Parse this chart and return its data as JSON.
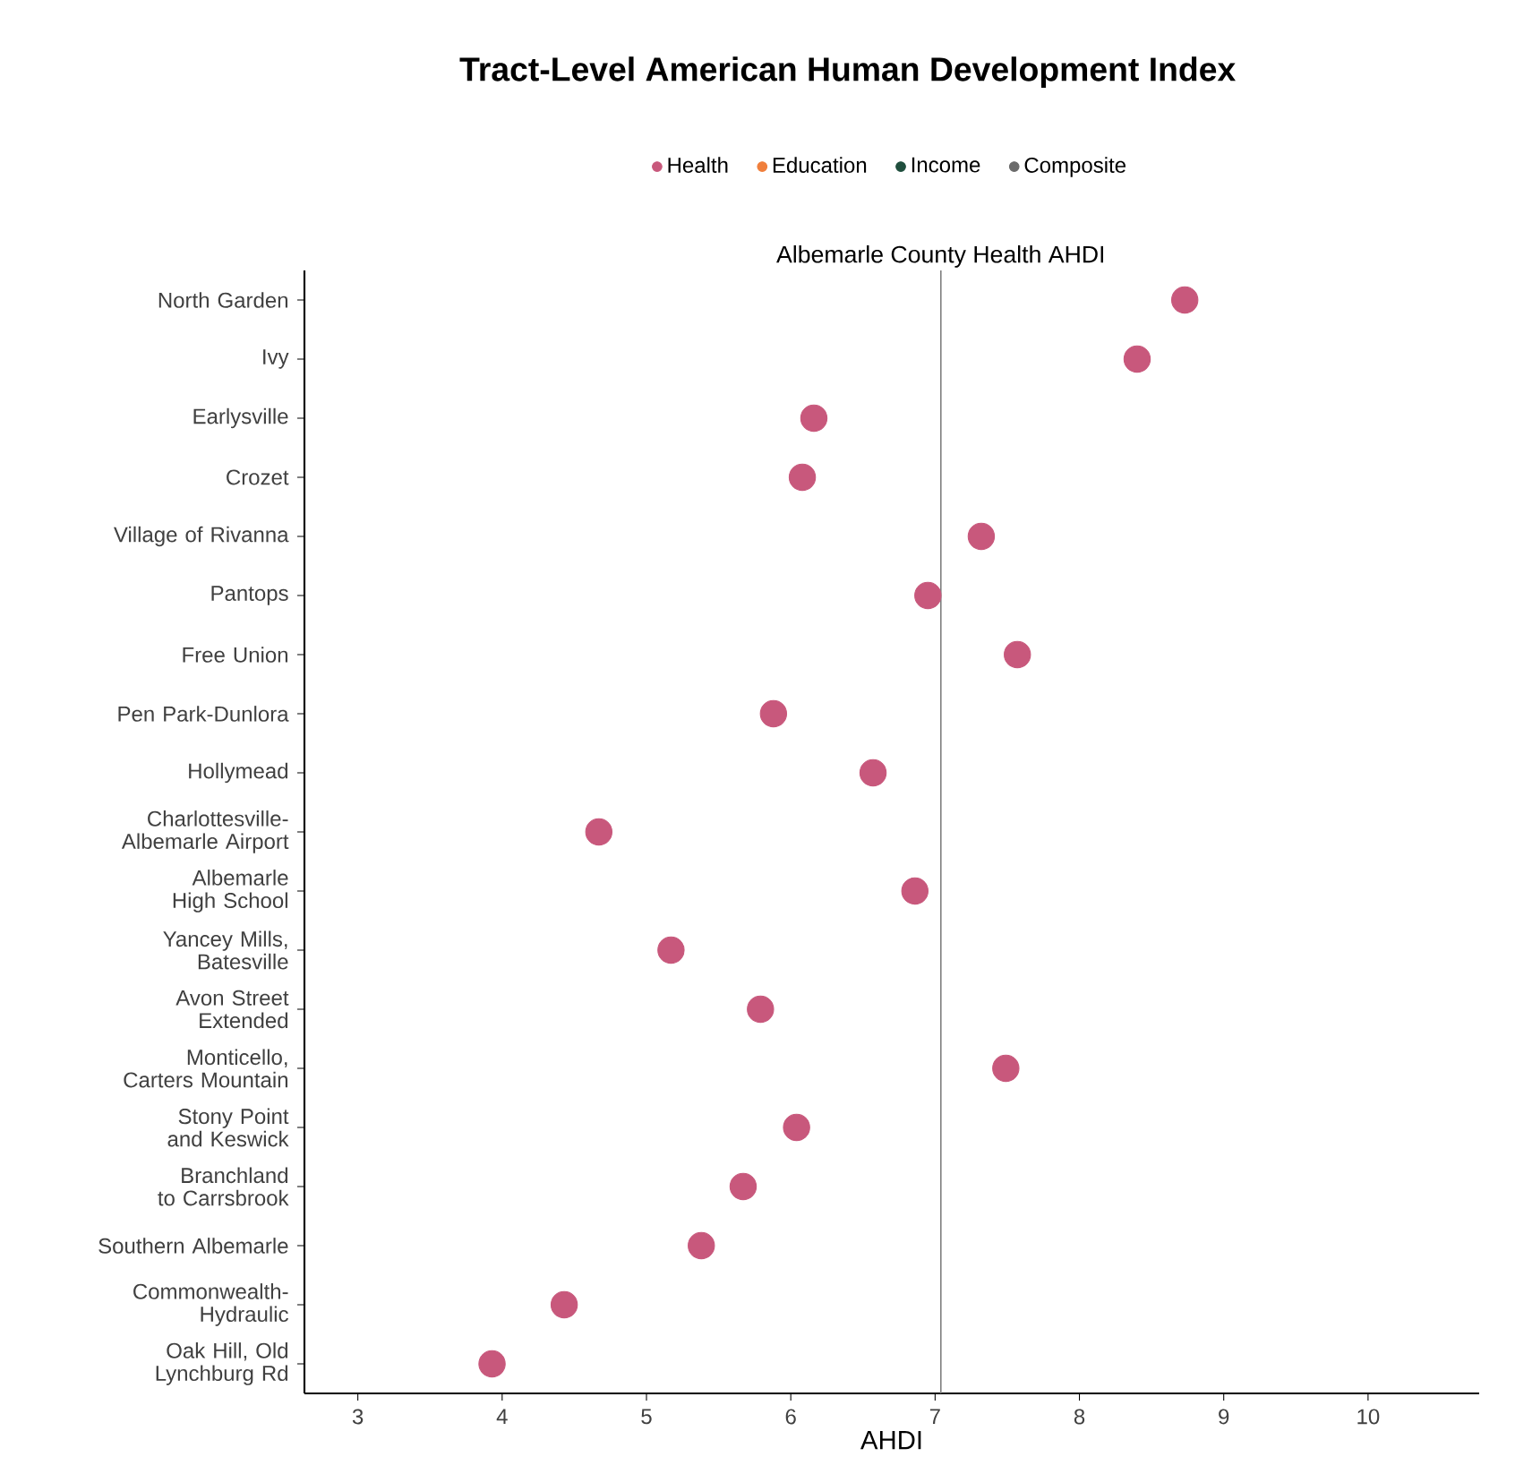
{
  "chart_data": {
    "type": "scatter",
    "title": "Tract-Level American Human Development Index",
    "xlabel": "AHDI",
    "categories": [
      "North Garden",
      "Ivy",
      "Earlysville",
      "Crozet",
      "Village of Rivanna",
      "Pantops",
      "Free Union",
      "Pen Park-Dunlora",
      "Hollymead",
      "Charlottesville-Albemarle Airport",
      "Albemarle High School",
      "Yancey Mills, Batesville",
      "Avon Street Extended",
      "Monticello, Carters Mountain",
      "Stony Point and Keswick",
      "Branchland to Carrsbrook",
      "Southern Albemarle",
      "Commonwealth-Hydraulic",
      "Oak Hill, Old Lynchburg Rd"
    ],
    "series": [
      {
        "name": "Health",
        "color": "#c8587c",
        "values": [
          8.73,
          8.4,
          6.16,
          6.08,
          7.32,
          6.95,
          7.57,
          5.88,
          6.57,
          4.67,
          6.86,
          5.17,
          5.79,
          7.49,
          6.04,
          5.67,
          5.38,
          4.43,
          3.93
        ]
      },
      {
        "name": "Education",
        "color": "#f07f3c",
        "values": [
          null,
          null,
          null,
          null,
          null,
          null,
          null,
          null,
          null,
          null,
          null,
          null,
          null,
          null,
          null,
          null,
          null,
          null,
          null
        ]
      },
      {
        "name": "Income",
        "color": "#1f4e3d",
        "values": [
          null,
          null,
          null,
          null,
          null,
          null,
          null,
          null,
          null,
          null,
          null,
          null,
          null,
          null,
          null,
          null,
          null,
          null,
          null
        ]
      },
      {
        "name": "Composite",
        "color": "#6b6b6b",
        "values": [
          null,
          null,
          null,
          null,
          null,
          null,
          null,
          null,
          null,
          null,
          null,
          null,
          null,
          null,
          null,
          null,
          null,
          null,
          null
        ]
      }
    ],
    "xlim": [
      2.63,
      10.77
    ],
    "xticks": [
      3,
      4,
      5,
      6,
      7,
      8,
      9,
      10
    ],
    "ref_lines": [
      {
        "axis": "x",
        "value": 7.04,
        "label": "Albemarle County Health AHDI",
        "color": "#7f7f7f"
      }
    ],
    "marker": "circle",
    "legend": "top",
    "grid": false,
    "orientation": "horizontal"
  }
}
